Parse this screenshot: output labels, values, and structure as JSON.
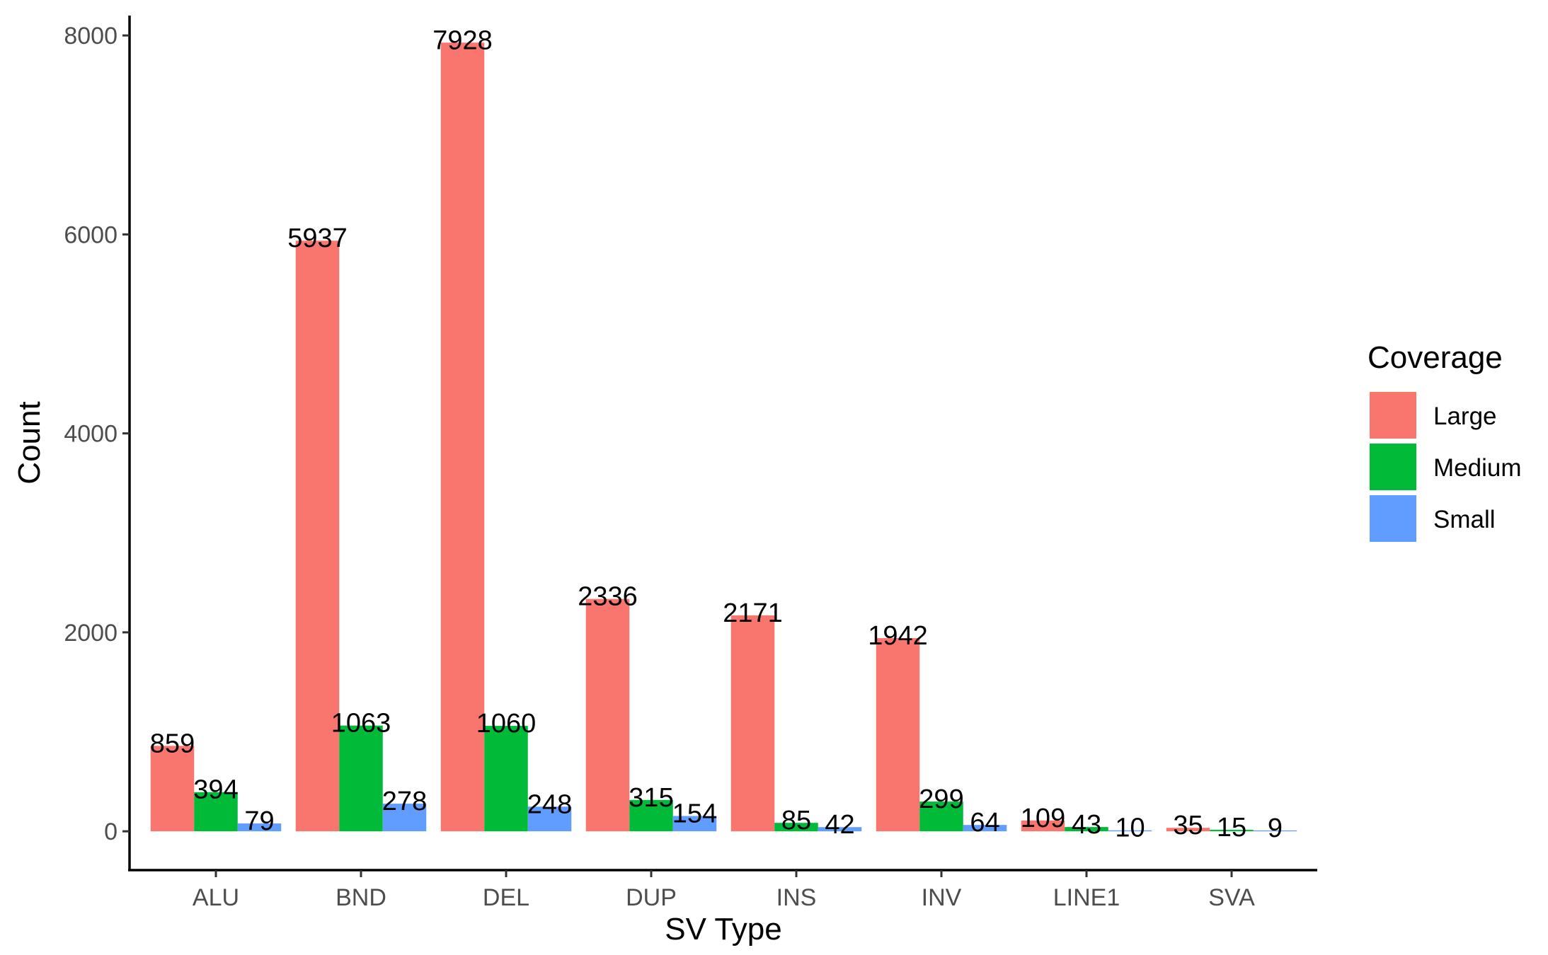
{
  "chart_data": {
    "type": "bar",
    "xlabel": "SV Type",
    "ylabel": "Count",
    "categories": [
      "ALU",
      "BND",
      "DEL",
      "DUP",
      "INS",
      "INV",
      "LINE1",
      "SVA"
    ],
    "series": [
      {
        "name": "Large",
        "color": "#F8766D",
        "values": [
          859,
          5937,
          7928,
          2336,
          2171,
          1942,
          109,
          35
        ]
      },
      {
        "name": "Medium",
        "color": "#00BA38",
        "values": [
          394,
          1063,
          1060,
          315,
          85,
          299,
          43,
          15
        ]
      },
      {
        "name": "Small",
        "color": "#619CFF",
        "values": [
          79,
          278,
          248,
          154,
          42,
          64,
          10,
          9
        ]
      }
    ],
    "ylim": [
      -390,
      8200
    ],
    "yticks": [
      0,
      2000,
      4000,
      6000,
      8000
    ],
    "legend": {
      "title": "Coverage",
      "position": "right"
    },
    "grid": false
  }
}
